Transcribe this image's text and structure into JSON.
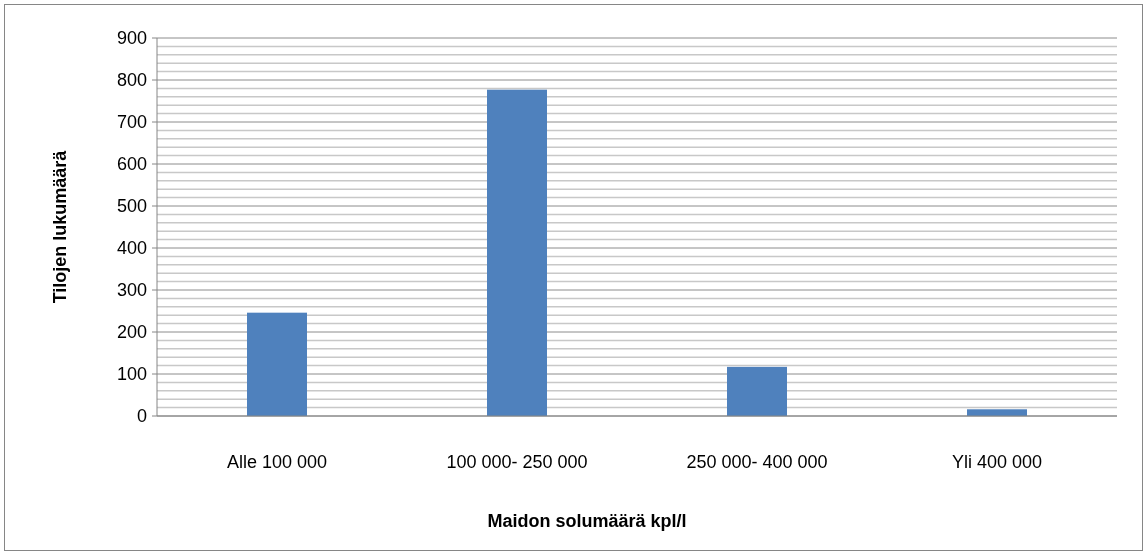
{
  "chart_data": {
    "type": "bar",
    "xlabel": "Maidon solumäärä kpl/l",
    "ylabel": "Tilojen lukumäärä",
    "categories": [
      "Alle 100 000",
      "100 000- 250 000",
      "250 000- 400 000",
      "Yli 400 000"
    ],
    "values": [
      246,
      777,
      117,
      16
    ],
    "color": "#4f81bd",
    "ylim": [
      0,
      900
    ],
    "yticks": [
      0,
      {
        "value": 20,
        "label": null
      },
      {
        "value": 40,
        "label": null
      },
      {
        "value": 60,
        "label": null
      },
      {
        "value": 80,
        "label": null
      },
      100,
      {
        "value": 120,
        "label": null
      },
      {
        "value": 140,
        "label": null
      },
      {
        "value": 160,
        "label": null
      },
      {
        "value": 180,
        "label": null
      },
      200,
      {
        "value": 220,
        "label": null
      },
      {
        "value": 240,
        "label": null
      },
      {
        "value": 260,
        "label": null
      },
      {
        "value": 280,
        "label": null
      },
      300,
      {
        "value": 320,
        "label": null
      },
      {
        "value": 340,
        "label": null
      },
      {
        "value": 360,
        "label": null
      },
      {
        "value": 380,
        "label": null
      },
      400,
      {
        "value": 420,
        "label": null
      },
      {
        "value": 440,
        "label": null
      },
      {
        "value": 460,
        "label": null
      },
      {
        "value": 480,
        "label": null
      },
      500,
      {
        "value": 520,
        "label": null
      },
      {
        "value": 540,
        "label": null
      },
      {
        "value": 560,
        "label": null
      },
      {
        "value": 580,
        "label": null
      },
      600,
      {
        "value": 620,
        "label": null
      },
      {
        "value": 640,
        "label": null
      },
      {
        "value": 660,
        "label": null
      },
      {
        "value": 680,
        "label": null
      },
      700,
      {
        "value": 720,
        "label": null
      },
      {
        "value": 740,
        "label": null
      },
      {
        "value": 760,
        "label": null
      },
      {
        "value": 780,
        "label": null
      },
      800,
      {
        "value": 820,
        "label": null
      },
      {
        "value": 840,
        "label": null
      },
      {
        "value": 860,
        "label": null
      },
      {
        "value": 880,
        "label": null
      },
      900
    ],
    "grid": true
  }
}
